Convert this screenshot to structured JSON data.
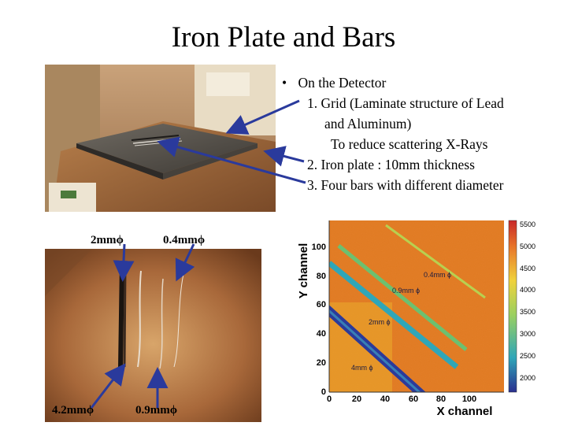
{
  "slide": {
    "title": "Iron Plate and Bars",
    "bullet_marker": "•",
    "bullets": [
      "On the Detector",
      "1. Grid (Laminate structure of Lead",
      "and Aluminum)",
      "To reduce scattering X-Rays",
      "2. Iron plate : 10mm thickness",
      "3. Four bars  with different diameter"
    ]
  },
  "bar_labels": {
    "top_left": "2mm",
    "top_right": "0.4mm",
    "bottom_left": "4.2mm",
    "bottom_right": "0.9mm",
    "phi": "ϕ"
  },
  "heatmap": {
    "xlabel": "X channel",
    "ylabel": "Y channel",
    "x_ticks": [
      "0",
      "20",
      "40",
      "60",
      "80",
      "100"
    ],
    "y_ticks": [
      "0",
      "20",
      "40",
      "60",
      "80",
      "100"
    ],
    "colorbar_ticks": [
      "5500",
      "5000",
      "4500",
      "4000",
      "3500",
      "3000",
      "2500",
      "2000"
    ],
    "annotations": [
      "0.4mm ϕ",
      "0.9mm ϕ",
      "2mm ϕ",
      "4mm ϕ"
    ]
  },
  "colors": {
    "background": "#ffffff",
    "arrow": "#2a3a9c",
    "heat_bg": "#e07a22",
    "stripe_4mm": "#2b3a9a",
    "stripe_2mm": "#2fa6b8",
    "stripe_09mm": "#6cc070",
    "stripe_04mm": "#b8d050"
  }
}
